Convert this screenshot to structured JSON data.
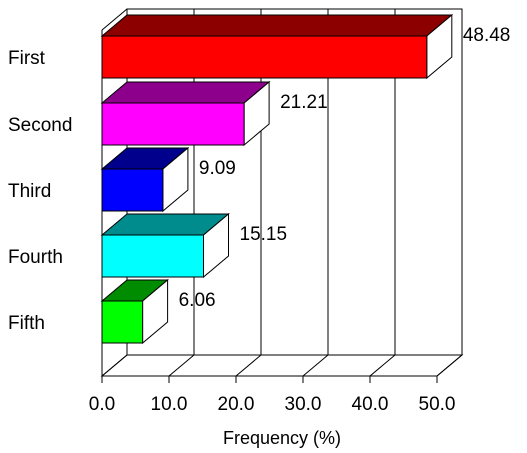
{
  "chart_data": {
    "type": "bar",
    "orientation": "horizontal",
    "style": "3d",
    "categories": [
      "First",
      "Second",
      "Third",
      "Fourth",
      "Fifth"
    ],
    "values": [
      48.48,
      21.21,
      9.09,
      15.15,
      6.06
    ],
    "value_labels": [
      "48.48",
      "21.21",
      "9.09",
      "15.15",
      "6.06"
    ],
    "colors": [
      "#ff0000",
      "#ff00ff",
      "#0000ff",
      "#00ffff",
      "#00ff00"
    ],
    "x_ticks": [
      "0.0",
      "10.0",
      "20.0",
      "30.0",
      "40.0",
      "50.0"
    ],
    "xlabel": "Frequency (%)",
    "xlim": [
      0,
      50
    ],
    "grid": true,
    "legend": "none"
  }
}
